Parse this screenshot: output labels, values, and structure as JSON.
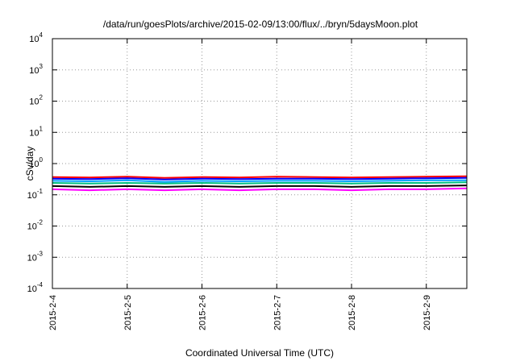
{
  "chart_data": {
    "type": "line",
    "title": "/data/run/goesPlots/archive/2015-02-09/13:00/flux/../bryn/5daysMoon.plot",
    "xlabel": "Coordinated Universal Time (UTC)",
    "ylabel": "cSv/day",
    "y_scale": "log",
    "ylim": [
      0.0001,
      10000
    ],
    "y_ticks": [
      {
        "base": "10",
        "exp": "-4"
      },
      {
        "base": "10",
        "exp": "-3"
      },
      {
        "base": "10",
        "exp": "-2"
      },
      {
        "base": "10",
        "exp": "-1"
      },
      {
        "base": "10",
        "exp": "0"
      },
      {
        "base": "10",
        "exp": "1"
      },
      {
        "base": "10",
        "exp": "2"
      },
      {
        "base": "10",
        "exp": "3"
      },
      {
        "base": "10",
        "exp": "4"
      }
    ],
    "xlim": [
      "2015-2-4",
      "2015-2-9 13:00"
    ],
    "x_ticks": [
      "2015-2-4",
      "2015-2-5",
      "2015-2-6",
      "2015-2-7",
      "2015-2-8",
      "2015-2-9"
    ],
    "grid": true,
    "x": [
      "2015-2-4",
      "2015-2-4 12:00",
      "2015-2-5",
      "2015-2-5 12:00",
      "2015-2-6",
      "2015-2-6 12:00",
      "2015-2-7",
      "2015-2-7 12:00",
      "2015-2-8",
      "2015-2-8 12:00",
      "2015-2-9",
      "2015-2-9 13:00"
    ],
    "series": [
      {
        "color": "#ff0000",
        "values": [
          0.37,
          0.36,
          0.38,
          0.35,
          0.37,
          0.36,
          0.38,
          0.37,
          0.36,
          0.37,
          0.38,
          0.39
        ]
      },
      {
        "color": "#0000ff",
        "values": [
          0.33,
          0.32,
          0.34,
          0.31,
          0.33,
          0.32,
          0.33,
          0.33,
          0.32,
          0.33,
          0.34,
          0.35
        ]
      },
      {
        "color": "#00a0ff",
        "values": [
          0.28,
          0.27,
          0.29,
          0.26,
          0.28,
          0.27,
          0.28,
          0.28,
          0.27,
          0.28,
          0.29,
          0.29
        ]
      },
      {
        "color": "#00c080",
        "values": [
          0.24,
          0.23,
          0.24,
          0.23,
          0.24,
          0.23,
          0.24,
          0.24,
          0.23,
          0.24,
          0.24,
          0.25
        ]
      },
      {
        "color": "#000000",
        "values": [
          0.19,
          0.18,
          0.19,
          0.18,
          0.19,
          0.18,
          0.19,
          0.19,
          0.18,
          0.19,
          0.19,
          0.2
        ]
      },
      {
        "color": "#ff00ff",
        "values": [
          0.15,
          0.14,
          0.15,
          0.14,
          0.15,
          0.14,
          0.15,
          0.15,
          0.14,
          0.15,
          0.15,
          0.16
        ]
      }
    ]
  }
}
